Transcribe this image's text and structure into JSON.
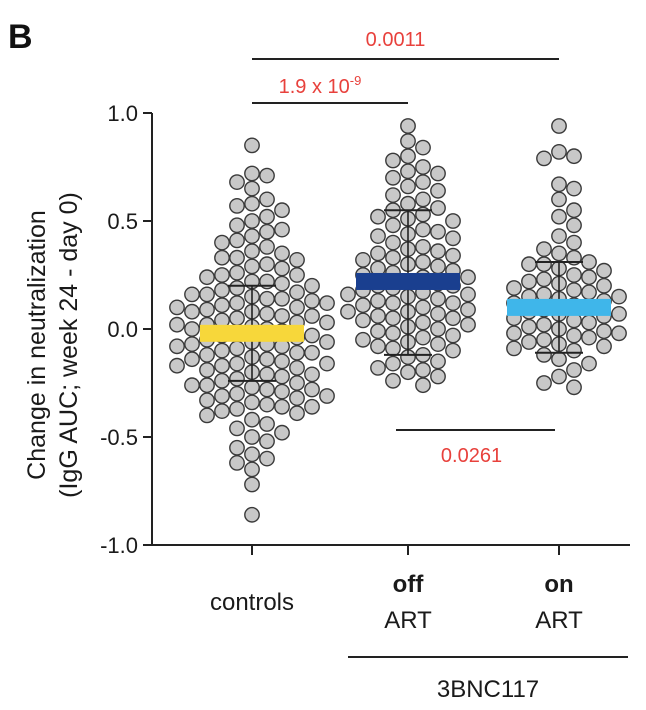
{
  "chart_data": {
    "type": "scatter",
    "panel_label": "B",
    "ylabel_line1": "Change in neutralization",
    "ylabel_line2": "(IgG AUC; week 24 - day 0)",
    "ylim": [
      -1.0,
      1.0
    ],
    "yticks": [
      "1.0",
      "0.5",
      "0.0",
      "-0.5",
      "-1.0"
    ],
    "categories": [
      {
        "top": "",
        "bottom": "controls",
        "bold_top": false
      },
      {
        "top": "off",
        "bottom": "ART",
        "bold_top": true
      },
      {
        "top": "on",
        "bottom": "ART",
        "bold_top": true
      }
    ],
    "group_label": "3BNC117",
    "marker_color": "#c8c8c8",
    "series": [
      {
        "name": "controls",
        "median": -0.02,
        "sd_low": -0.24,
        "sd_high": 0.2,
        "color": "#f7d73a",
        "values": [
          0.85,
          0.72,
          0.71,
          0.68,
          0.65,
          0.6,
          0.58,
          0.57,
          0.55,
          0.52,
          0.5,
          0.48,
          0.46,
          0.45,
          0.43,
          0.41,
          0.4,
          0.38,
          0.36,
          0.35,
          0.33,
          0.32,
          0.3,
          0.29,
          0.28,
          0.26,
          0.25,
          0.24,
          0.22,
          0.21,
          0.2,
          0.19,
          0.18,
          0.17,
          0.16,
          0.15,
          0.14,
          0.13,
          0.12,
          0.11,
          0.1,
          0.09,
          0.08,
          0.07,
          0.06,
          0.05,
          0.04,
          0.03,
          0.02,
          0.01,
          0.0,
          -0.01,
          -0.02,
          -0.03,
          -0.04,
          -0.05,
          -0.06,
          -0.07,
          -0.08,
          -0.09,
          -0.1,
          -0.11,
          -0.12,
          -0.13,
          -0.14,
          -0.15,
          -0.16,
          -0.17,
          -0.18,
          -0.19,
          -0.2,
          -0.21,
          -0.22,
          -0.23,
          -0.24,
          -0.25,
          -0.26,
          -0.27,
          -0.28,
          -0.29,
          -0.3,
          -0.31,
          -0.32,
          -0.33,
          -0.34,
          -0.35,
          -0.36,
          -0.37,
          -0.38,
          -0.39,
          -0.4,
          -0.42,
          -0.44,
          -0.46,
          -0.48,
          -0.5,
          -0.52,
          -0.55,
          -0.58,
          -0.6,
          -0.62,
          -0.65,
          -0.72,
          -0.86,
          0.33,
          0.22,
          0.14,
          0.1,
          0.06,
          0.02,
          -0.03,
          -0.07,
          -0.11,
          -0.16,
          -0.21,
          -0.26,
          -0.31,
          -0.36,
          0.25,
          0.16,
          0.08,
          0.0,
          -0.08,
          -0.17,
          -0.28,
          0.12,
          0.03,
          -0.06,
          -0.14
        ]
      },
      {
        "name": "off ART",
        "median": 0.22,
        "sd_low": -0.12,
        "sd_high": 0.55,
        "color": "#1a3f8f",
        "values": [
          0.94,
          0.87,
          0.84,
          0.8,
          0.78,
          0.75,
          0.73,
          0.72,
          0.7,
          0.68,
          0.66,
          0.64,
          0.62,
          0.6,
          0.58,
          0.56,
          0.55,
          0.53,
          0.51,
          0.5,
          0.48,
          0.46,
          0.45,
          0.43,
          0.42,
          0.4,
          0.38,
          0.37,
          0.35,
          0.34,
          0.33,
          0.31,
          0.3,
          0.29,
          0.27,
          0.26,
          0.25,
          0.24,
          0.22,
          0.21,
          0.2,
          0.19,
          0.18,
          0.17,
          0.16,
          0.15,
          0.14,
          0.13,
          0.12,
          0.11,
          0.1,
          0.09,
          0.08,
          0.07,
          0.06,
          0.05,
          0.04,
          0.03,
          0.02,
          0.01,
          0.0,
          -0.01,
          -0.02,
          -0.04,
          -0.05,
          -0.06,
          -0.08,
          -0.09,
          -0.1,
          -0.12,
          -0.13,
          -0.15,
          -0.16,
          -0.18,
          -0.19,
          -0.2,
          -0.22,
          -0.24,
          -0.26,
          0.36,
          0.28,
          0.2,
          0.12,
          0.05,
          -0.03,
          0.44,
          0.32,
          0.24,
          0.16,
          0.08,
          -0.07,
          0.52
        ]
      },
      {
        "name": "on ART",
        "median": 0.1,
        "sd_low": -0.11,
        "sd_high": 0.31,
        "color": "#3fb6ea",
        "values": [
          0.94,
          0.82,
          0.8,
          0.79,
          0.67,
          0.65,
          0.6,
          0.55,
          0.52,
          0.48,
          0.43,
          0.4,
          0.37,
          0.35,
          0.33,
          0.31,
          0.3,
          0.28,
          0.27,
          0.25,
          0.24,
          0.22,
          0.21,
          0.2,
          0.19,
          0.18,
          0.17,
          0.16,
          0.15,
          0.14,
          0.13,
          0.12,
          0.11,
          0.1,
          0.09,
          0.08,
          0.07,
          0.06,
          0.05,
          0.04,
          0.03,
          0.02,
          0.01,
          0.0,
          -0.01,
          -0.02,
          -0.03,
          -0.04,
          -0.05,
          -0.06,
          -0.07,
          -0.08,
          -0.09,
          -0.1,
          -0.12,
          -0.14,
          -0.16,
          -0.19,
          -0.22,
          -0.25,
          -0.27,
          0.23,
          0.15,
          0.07,
          -0.02,
          0.3
        ]
      }
    ],
    "comparisons": [
      {
        "from": 0,
        "to": 1,
        "label_pre": "1.9 x 10",
        "label_sup": "-9",
        "position": "top"
      },
      {
        "from": 0,
        "to": 2,
        "label_pre": "0.0011",
        "label_sup": "",
        "position": "top"
      },
      {
        "from": 1,
        "to": 2,
        "label_pre": "0.0261",
        "label_sup": "",
        "position": "bottom"
      }
    ]
  }
}
